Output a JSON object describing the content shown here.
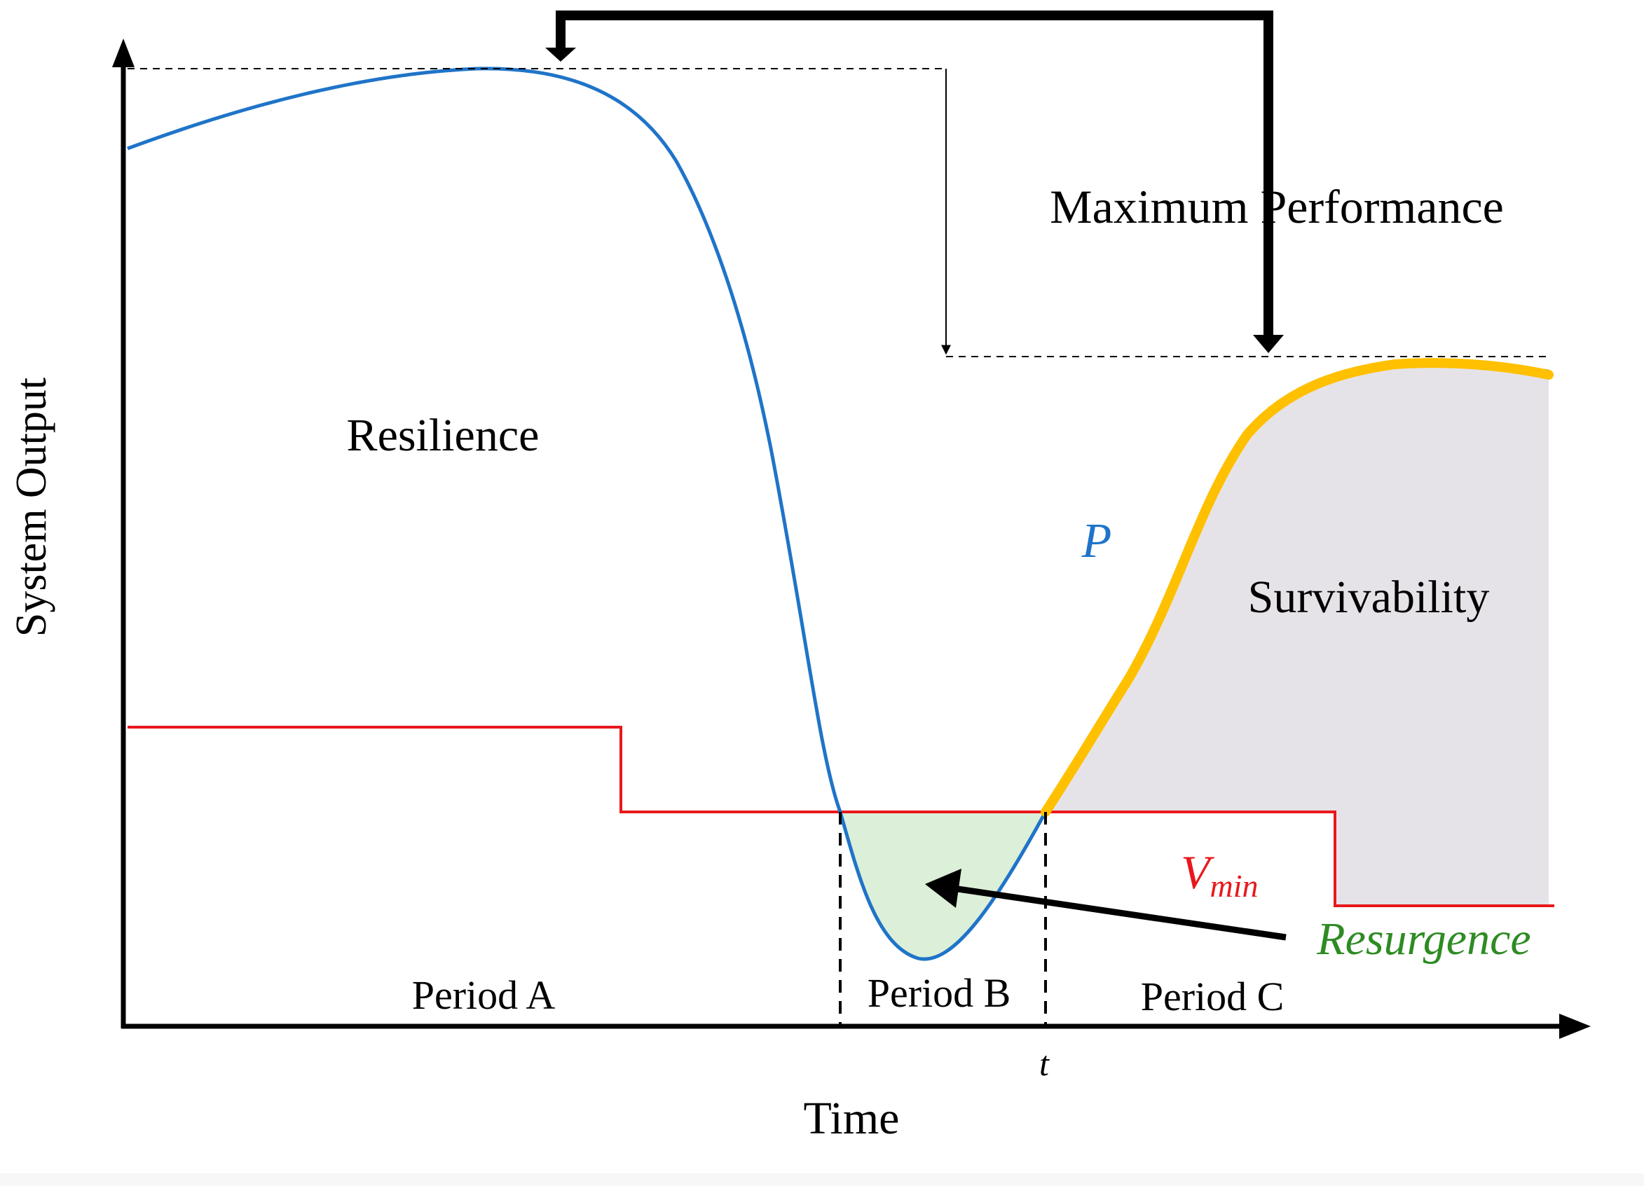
{
  "labels": {
    "y_axis": "System Output",
    "x_axis": "Time",
    "resilience": "Resilience",
    "maximum_performance": "Maximum Performance",
    "survivability": "Survivability",
    "performance_symbol": "P",
    "vmin_main": "V",
    "vmin_sub": "min",
    "resurgence": "Resurgence",
    "period_a": "Period A",
    "period_b": "Period B",
    "period_c": "Period C",
    "t_marker": "t"
  },
  "colors": {
    "performance_curve": "#1f74c8",
    "threshold_line": "#e8181c",
    "survivability_curve": "#ffc000",
    "survivability_fill": "#e6e3e8",
    "resurgence_fill": "#dcefd8",
    "resurgence_text": "#2e8b23",
    "axis": "#000000"
  }
}
